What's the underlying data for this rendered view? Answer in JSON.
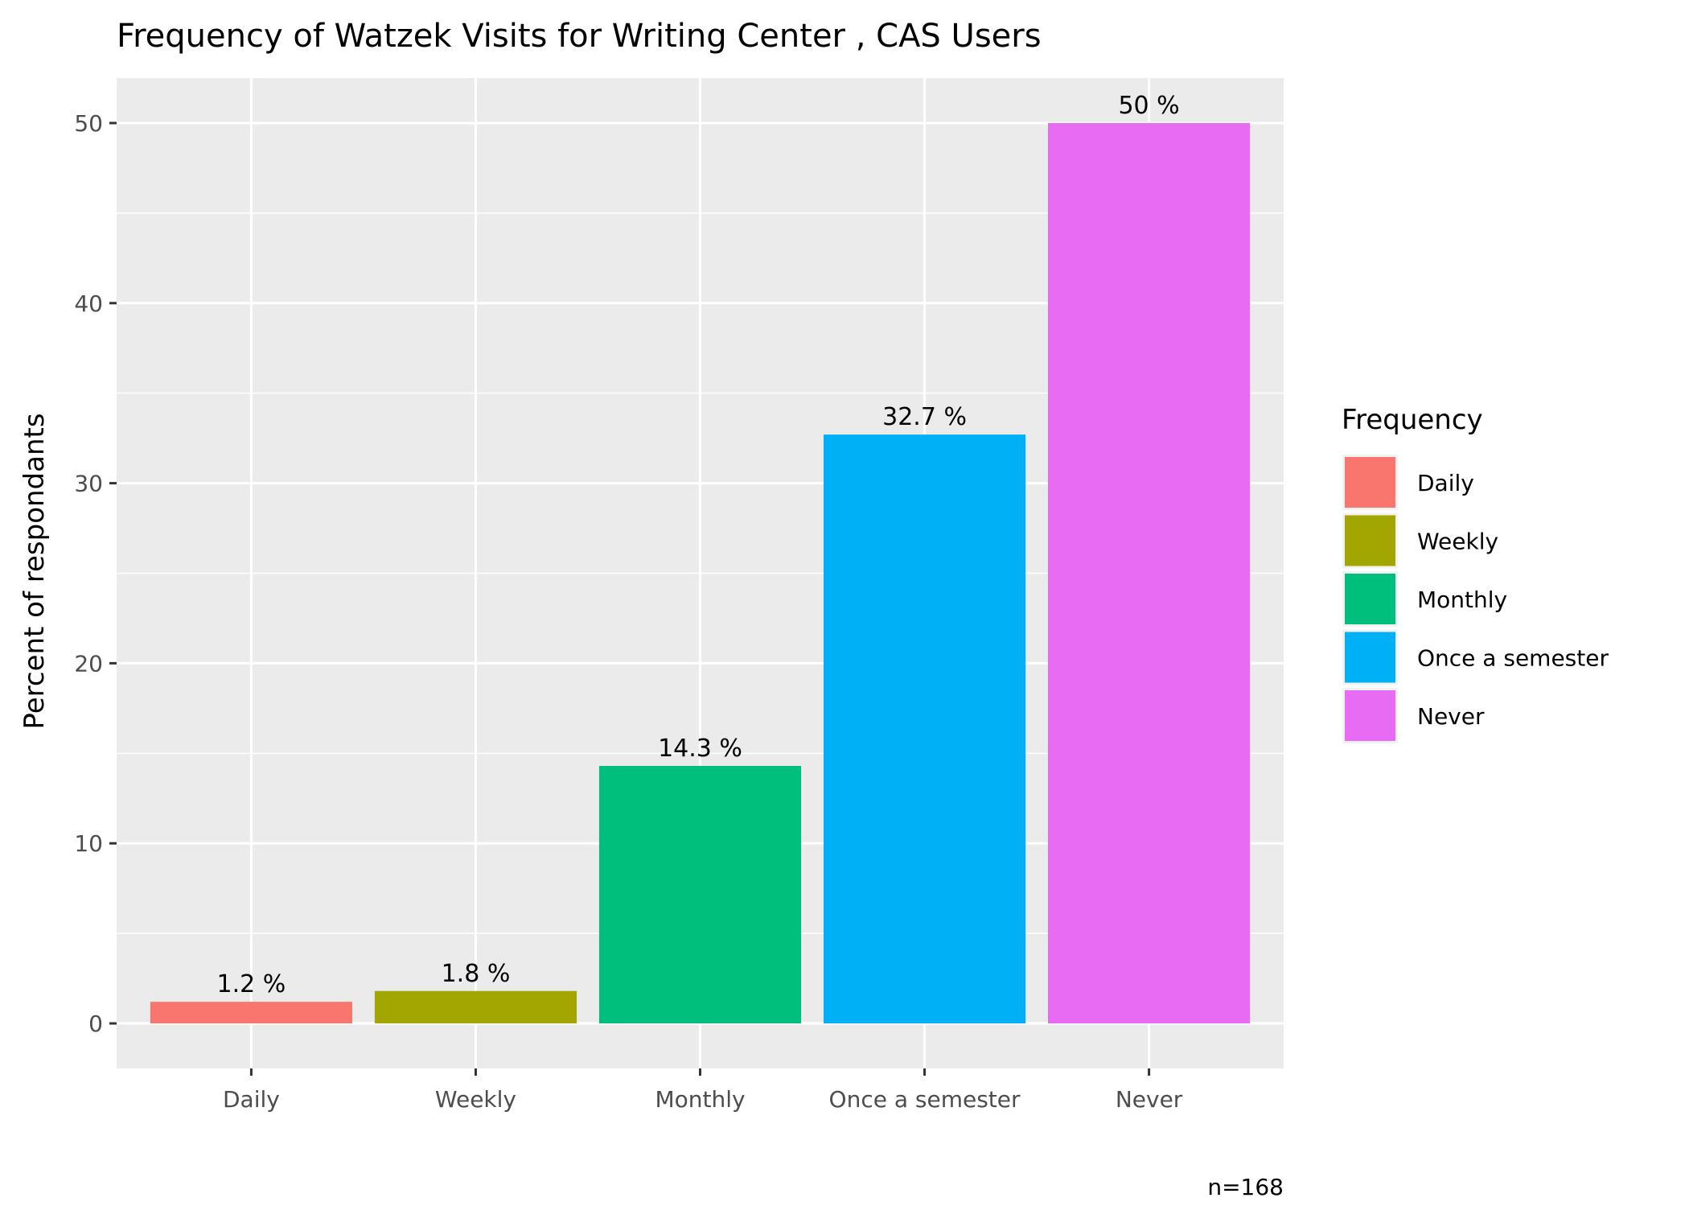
{
  "chart_data": {
    "type": "bar",
    "title": "Frequency of Watzek Visits for Writing Center , CAS Users",
    "xlabel": "",
    "ylabel": "Percent of respondants",
    "categories": [
      "Daily",
      "Weekly",
      "Monthly",
      "Once a semester",
      "Never"
    ],
    "values": [
      1.2,
      1.8,
      14.3,
      32.7,
      50
    ],
    "value_labels": [
      "1.2 %",
      "1.8 %",
      "14.3 %",
      "32.7 %",
      "50 %"
    ],
    "colors": [
      "#F8766D",
      "#A3A500",
      "#00BF7D",
      "#00B0F6",
      "#E76BF3"
    ],
    "ylim": [
      -2.5,
      52.5
    ],
    "yticks": [
      0,
      10,
      20,
      30,
      40,
      50
    ],
    "ytick_labels": [
      "0",
      "10",
      "20",
      "30",
      "40",
      "50"
    ],
    "grid": true,
    "panel_background": "#EBEBEB",
    "legend": {
      "title": "Frequency",
      "position": "right",
      "items": [
        "Daily",
        "Weekly",
        "Monthly",
        "Once a semester",
        "Never"
      ]
    },
    "caption": "n=168"
  }
}
